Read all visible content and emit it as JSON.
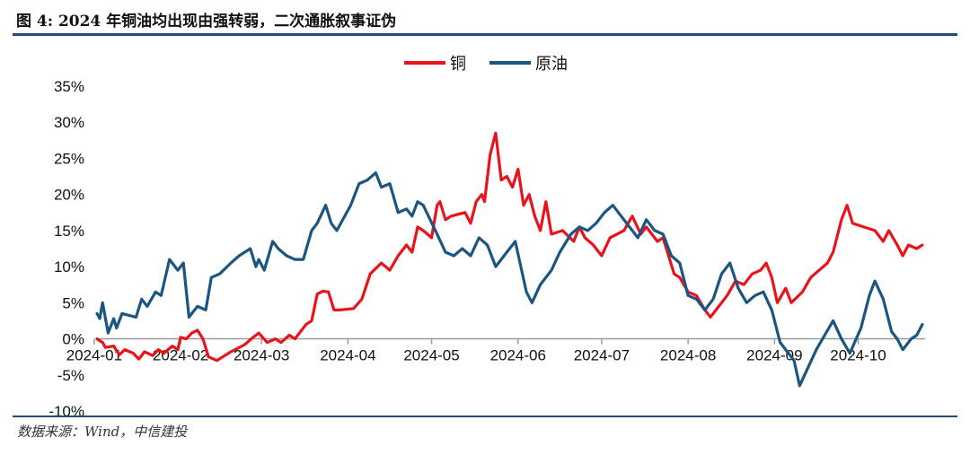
{
  "title": "图 4: 2024 年铜油均出现由强转弱，二次通胀叙事证伪",
  "source": "数据来源：Wind，中信建投",
  "chart_data": {
    "type": "line",
    "title": "图 4: 2024 年铜油均出现由强转弱，二次通胀叙事证伪",
    "xlabel": "",
    "ylabel": "",
    "ylim": [
      -10,
      35
    ],
    "y_ticks": [
      -10,
      -5,
      0,
      5,
      10,
      15,
      20,
      25,
      30,
      35
    ],
    "y_tick_labels": [
      "-10%",
      "-5%",
      "0%",
      "5%",
      "10%",
      "15%",
      "20%",
      "25%",
      "30%",
      "35%"
    ],
    "x_ticks": [
      "2024-01",
      "2024-02",
      "2024-03",
      "2024-04",
      "2024-05",
      "2024-06",
      "2024-07",
      "2024-08",
      "2024-09",
      "2024-10"
    ],
    "xlim": [
      "2024-01-02",
      "2024-10-25"
    ],
    "legend_position": "top-center",
    "grid": false,
    "series": [
      {
        "name": "铜",
        "color": "#e8141b",
        "points": [
          [
            "2024-01-02",
            0.0
          ],
          [
            "2024-01-04",
            -0.5
          ],
          [
            "2024-01-05",
            -1.2
          ],
          [
            "2024-01-08",
            -1.0
          ],
          [
            "2024-01-10",
            -2.2
          ],
          [
            "2024-01-12",
            -1.5
          ],
          [
            "2024-01-15",
            -2.0
          ],
          [
            "2024-01-17",
            -2.8
          ],
          [
            "2024-01-19",
            -1.8
          ],
          [
            "2024-01-22",
            -2.3
          ],
          [
            "2024-01-24",
            -1.5
          ],
          [
            "2024-01-26",
            -2.0
          ],
          [
            "2024-01-29",
            -1.0
          ],
          [
            "2024-01-31",
            -1.5
          ],
          [
            "2024-02-01",
            0.2
          ],
          [
            "2024-02-03",
            0.0
          ],
          [
            "2024-02-05",
            0.8
          ],
          [
            "2024-02-07",
            1.2
          ],
          [
            "2024-02-09",
            0.0
          ],
          [
            "2024-02-11",
            -2.5
          ],
          [
            "2024-02-14",
            -3.0
          ],
          [
            "2024-02-19",
            -1.8
          ],
          [
            "2024-02-24",
            -0.8
          ],
          [
            "2024-02-27",
            0.2
          ],
          [
            "2024-02-29",
            0.8
          ],
          [
            "2024-03-03",
            -0.5
          ],
          [
            "2024-03-06",
            0.0
          ],
          [
            "2024-03-08",
            -0.5
          ],
          [
            "2024-03-11",
            0.5
          ],
          [
            "2024-03-13",
            0.0
          ],
          [
            "2024-03-15",
            1.0
          ],
          [
            "2024-03-17",
            2.0
          ],
          [
            "2024-03-19",
            2.5
          ],
          [
            "2024-03-21",
            6.2
          ],
          [
            "2024-03-23",
            6.6
          ],
          [
            "2024-03-25",
            6.5
          ],
          [
            "2024-03-27",
            4.0
          ],
          [
            "2024-03-29",
            4.0
          ],
          [
            "2024-04-03",
            4.2
          ],
          [
            "2024-04-06",
            5.5
          ],
          [
            "2024-04-09",
            9.0
          ],
          [
            "2024-04-13",
            10.5
          ],
          [
            "2024-04-16",
            9.5
          ],
          [
            "2024-04-19",
            11.5
          ],
          [
            "2024-04-22",
            13.0
          ],
          [
            "2024-04-24",
            12.0
          ],
          [
            "2024-04-26",
            15.5
          ],
          [
            "2024-04-28",
            15.0
          ],
          [
            "2024-05-01",
            14.0
          ],
          [
            "2024-05-03",
            18.5
          ],
          [
            "2024-05-04",
            19.0
          ],
          [
            "2024-05-06",
            16.5
          ],
          [
            "2024-05-08",
            17.0
          ],
          [
            "2024-05-13",
            17.5
          ],
          [
            "2024-05-15",
            16.0
          ],
          [
            "2024-05-17",
            19.0
          ],
          [
            "2024-05-19",
            20.0
          ],
          [
            "2024-05-20",
            19.0
          ],
          [
            "2024-05-22",
            25.5
          ],
          [
            "2024-05-24",
            28.5
          ],
          [
            "2024-05-26",
            22.0
          ],
          [
            "2024-05-28",
            22.5
          ],
          [
            "2024-05-30",
            21.0
          ],
          [
            "2024-06-01",
            23.5
          ],
          [
            "2024-06-03",
            18.5
          ],
          [
            "2024-06-05",
            20.0
          ],
          [
            "2024-06-07",
            17.0
          ],
          [
            "2024-06-09",
            15.0
          ],
          [
            "2024-06-11",
            19.0
          ],
          [
            "2024-06-13",
            14.5
          ],
          [
            "2024-06-17",
            15.0
          ],
          [
            "2024-06-21",
            13.5
          ],
          [
            "2024-06-23",
            15.5
          ],
          [
            "2024-06-25",
            14.0
          ],
          [
            "2024-06-28",
            13.0
          ],
          [
            "2024-07-01",
            11.5
          ],
          [
            "2024-07-04",
            14.0
          ],
          [
            "2024-07-09",
            15.0
          ],
          [
            "2024-07-12",
            17.0
          ],
          [
            "2024-07-15",
            14.5
          ],
          [
            "2024-07-17",
            15.5
          ],
          [
            "2024-07-21",
            13.5
          ],
          [
            "2024-07-23",
            14.0
          ],
          [
            "2024-07-27",
            9.0
          ],
          [
            "2024-07-29",
            8.5
          ],
          [
            "2024-08-01",
            6.5
          ],
          [
            "2024-08-04",
            6.0
          ],
          [
            "2024-08-07",
            4.0
          ],
          [
            "2024-08-09",
            3.0
          ],
          [
            "2024-08-12",
            4.5
          ],
          [
            "2024-08-15",
            6.0
          ],
          [
            "2024-08-18",
            8.0
          ],
          [
            "2024-08-21",
            7.5
          ],
          [
            "2024-08-24",
            9.0
          ],
          [
            "2024-08-27",
            9.5
          ],
          [
            "2024-08-29",
            10.5
          ],
          [
            "2024-08-31",
            8.5
          ],
          [
            "2024-09-02",
            5.0
          ],
          [
            "2024-09-05",
            7.0
          ],
          [
            "2024-09-07",
            5.0
          ],
          [
            "2024-09-11",
            6.5
          ],
          [
            "2024-09-14",
            8.5
          ],
          [
            "2024-09-17",
            9.5
          ],
          [
            "2024-09-20",
            10.5
          ],
          [
            "2024-09-22",
            12.0
          ],
          [
            "2024-09-25",
            16.5
          ],
          [
            "2024-09-27",
            18.5
          ],
          [
            "2024-09-29",
            16.0
          ],
          [
            "2024-10-03",
            15.5
          ],
          [
            "2024-10-07",
            15.0
          ],
          [
            "2024-10-10",
            13.5
          ],
          [
            "2024-10-12",
            15.0
          ],
          [
            "2024-10-15",
            13.0
          ],
          [
            "2024-10-17",
            11.5
          ],
          [
            "2024-10-19",
            13.0
          ],
          [
            "2024-10-22",
            12.5
          ],
          [
            "2024-10-24",
            13.0
          ]
        ]
      },
      {
        "name": "原油",
        "color": "#1a5681",
        "points": [
          [
            "2024-01-02",
            3.5
          ],
          [
            "2024-01-03",
            2.8
          ],
          [
            "2024-01-04",
            5.0
          ],
          [
            "2024-01-06",
            0.8
          ],
          [
            "2024-01-08",
            2.8
          ],
          [
            "2024-01-09",
            1.5
          ],
          [
            "2024-01-11",
            3.5
          ],
          [
            "2024-01-16",
            3.0
          ],
          [
            "2024-01-18",
            5.5
          ],
          [
            "2024-01-20",
            4.5
          ],
          [
            "2024-01-23",
            6.5
          ],
          [
            "2024-01-25",
            6.0
          ],
          [
            "2024-01-28",
            11.0
          ],
          [
            "2024-01-31",
            9.5
          ],
          [
            "2024-02-02",
            10.5
          ],
          [
            "2024-02-04",
            3.0
          ],
          [
            "2024-02-07",
            4.5
          ],
          [
            "2024-02-10",
            4.0
          ],
          [
            "2024-02-12",
            8.5
          ],
          [
            "2024-02-15",
            9.0
          ],
          [
            "2024-02-19",
            10.5
          ],
          [
            "2024-02-22",
            11.5
          ],
          [
            "2024-02-26",
            12.5
          ],
          [
            "2024-02-28",
            10.0
          ],
          [
            "2024-02-29",
            11.0
          ],
          [
            "2024-03-02",
            9.5
          ],
          [
            "2024-03-05",
            13.5
          ],
          [
            "2024-03-07",
            12.5
          ],
          [
            "2024-03-10",
            11.5
          ],
          [
            "2024-03-13",
            11.0
          ],
          [
            "2024-03-16",
            11.0
          ],
          [
            "2024-03-19",
            15.0
          ],
          [
            "2024-03-21",
            16.0
          ],
          [
            "2024-03-24",
            18.5
          ],
          [
            "2024-03-26",
            16.0
          ],
          [
            "2024-03-28",
            15.0
          ],
          [
            "2024-04-02",
            18.5
          ],
          [
            "2024-04-05",
            21.5
          ],
          [
            "2024-04-08",
            22.0
          ],
          [
            "2024-04-11",
            23.0
          ],
          [
            "2024-04-13",
            21.0
          ],
          [
            "2024-04-16",
            21.5
          ],
          [
            "2024-04-19",
            17.5
          ],
          [
            "2024-04-22",
            18.0
          ],
          [
            "2024-04-24",
            17.0
          ],
          [
            "2024-04-26",
            19.0
          ],
          [
            "2024-04-28",
            18.5
          ],
          [
            "2024-05-03",
            14.5
          ],
          [
            "2024-05-06",
            12.0
          ],
          [
            "2024-05-09",
            11.5
          ],
          [
            "2024-05-12",
            12.5
          ],
          [
            "2024-05-15",
            11.5
          ],
          [
            "2024-05-18",
            14.0
          ],
          [
            "2024-05-21",
            13.0
          ],
          [
            "2024-05-24",
            10.0
          ],
          [
            "2024-05-28",
            12.0
          ],
          [
            "2024-05-31",
            13.5
          ],
          [
            "2024-06-04",
            6.5
          ],
          [
            "2024-06-06",
            5.0
          ],
          [
            "2024-06-09",
            7.5
          ],
          [
            "2024-06-13",
            9.5
          ],
          [
            "2024-06-16",
            12.0
          ],
          [
            "2024-06-20",
            14.5
          ],
          [
            "2024-06-23",
            15.5
          ],
          [
            "2024-06-26",
            15.0
          ],
          [
            "2024-06-29",
            16.0
          ],
          [
            "2024-07-02",
            17.5
          ],
          [
            "2024-07-05",
            18.5
          ],
          [
            "2024-07-08",
            17.0
          ],
          [
            "2024-07-11",
            15.5
          ],
          [
            "2024-07-14",
            14.0
          ],
          [
            "2024-07-17",
            16.5
          ],
          [
            "2024-07-20",
            15.0
          ],
          [
            "2024-07-23",
            14.5
          ],
          [
            "2024-07-26",
            11.5
          ],
          [
            "2024-07-29",
            10.5
          ],
          [
            "2024-08-01",
            6.0
          ],
          [
            "2024-08-04",
            5.5
          ],
          [
            "2024-08-07",
            4.0
          ],
          [
            "2024-08-10",
            5.5
          ],
          [
            "2024-08-13",
            9.0
          ],
          [
            "2024-08-16",
            10.5
          ],
          [
            "2024-08-19",
            7.0
          ],
          [
            "2024-08-22",
            5.0
          ],
          [
            "2024-08-25",
            6.0
          ],
          [
            "2024-08-28",
            6.5
          ],
          [
            "2024-08-31",
            4.0
          ],
          [
            "2024-09-03",
            -0.5
          ],
          [
            "2024-09-05",
            -1.5
          ],
          [
            "2024-09-08",
            -3.0
          ],
          [
            "2024-09-10",
            -6.5
          ],
          [
            "2024-09-13",
            -4.0
          ],
          [
            "2024-09-16",
            -1.5
          ],
          [
            "2024-09-19",
            0.5
          ],
          [
            "2024-09-22",
            2.5
          ],
          [
            "2024-09-25",
            0.0
          ],
          [
            "2024-09-28",
            -2.0
          ],
          [
            "2024-10-02",
            1.5
          ],
          [
            "2024-10-05",
            6.0
          ],
          [
            "2024-10-07",
            8.0
          ],
          [
            "2024-10-10",
            5.5
          ],
          [
            "2024-10-13",
            1.0
          ],
          [
            "2024-10-15",
            0.0
          ],
          [
            "2024-10-17",
            -1.5
          ],
          [
            "2024-10-20",
            0.0
          ],
          [
            "2024-10-22",
            0.5
          ],
          [
            "2024-10-24",
            2.0
          ]
        ]
      }
    ]
  }
}
